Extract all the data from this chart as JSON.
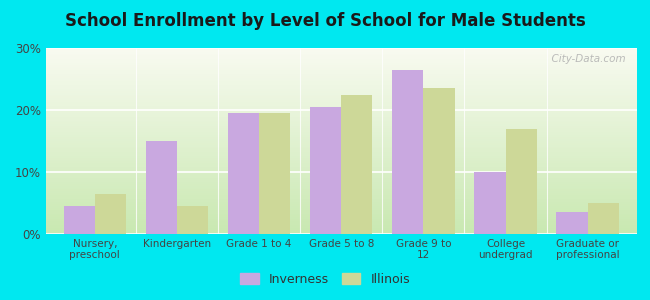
{
  "title": "School Enrollment by Level of School for Male Students",
  "categories": [
    "Nursery,\npreschool",
    "Kindergarten",
    "Grade 1 to 4",
    "Grade 5 to 8",
    "Grade 9 to\n12",
    "College\nundergrad",
    "Graduate or\nprofessional"
  ],
  "inverness": [
    4.5,
    15.0,
    19.5,
    20.5,
    26.5,
    10.0,
    3.5
  ],
  "illinois": [
    6.5,
    4.5,
    19.5,
    22.5,
    23.5,
    17.0,
    5.0
  ],
  "inverness_color": "#c9a8e0",
  "illinois_color": "#cdd898",
  "background_outer": "#00e8f0",
  "background_inner_top": "#f8faf0",
  "background_inner_bottom": "#c8e8b0",
  "title_color": "#1a1a1a",
  "ylabel_ticks": [
    "0%",
    "10%",
    "20%",
    "30%"
  ],
  "ytick_vals": [
    0,
    10,
    20,
    30
  ],
  "ylim": [
    0,
    30
  ],
  "bar_width": 0.38,
  "legend_labels": [
    "Inverness",
    "Illinois"
  ],
  "watermark": "  City-Data.com"
}
